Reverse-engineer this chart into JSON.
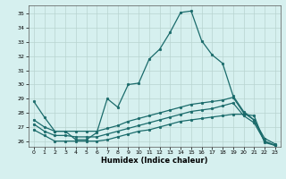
{
  "xlabel": "Humidex (Indice chaleur)",
  "xlim": [
    -0.5,
    23.5
  ],
  "ylim": [
    25.6,
    35.6
  ],
  "yticks": [
    26,
    27,
    28,
    29,
    30,
    31,
    32,
    33,
    34,
    35
  ],
  "xticks": [
    0,
    1,
    2,
    3,
    4,
    5,
    6,
    7,
    8,
    9,
    10,
    11,
    12,
    13,
    14,
    15,
    16,
    17,
    18,
    19,
    20,
    21,
    22,
    23
  ],
  "background_color": "#d6f0ef",
  "grid_color": "#b8d4d0",
  "line_color": "#1a6b6b",
  "line1": [
    28.8,
    27.7,
    26.7,
    26.7,
    26.1,
    26.1,
    26.6,
    29.0,
    28.4,
    30.0,
    30.1,
    31.8,
    32.5,
    33.7,
    35.1,
    35.2,
    33.1,
    32.1,
    31.5,
    29.2,
    28.1,
    27.5,
    26.2,
    25.8
  ],
  "line2": [
    26.8,
    26.4,
    26.0,
    26.0,
    26.0,
    26.0,
    26.0,
    26.1,
    26.3,
    26.5,
    26.7,
    26.8,
    27.0,
    27.2,
    27.4,
    27.5,
    27.6,
    27.7,
    27.8,
    27.9,
    27.9,
    27.8,
    25.9,
    25.7
  ],
  "line3": [
    27.5,
    27.0,
    26.7,
    26.7,
    26.7,
    26.7,
    26.7,
    26.9,
    27.1,
    27.4,
    27.6,
    27.8,
    28.0,
    28.2,
    28.4,
    28.6,
    28.7,
    28.8,
    28.9,
    29.1,
    28.0,
    27.5,
    26.0,
    25.7
  ],
  "line4": [
    27.2,
    26.7,
    26.4,
    26.4,
    26.3,
    26.3,
    26.3,
    26.5,
    26.7,
    26.9,
    27.1,
    27.3,
    27.5,
    27.7,
    27.9,
    28.1,
    28.2,
    28.3,
    28.5,
    28.7,
    27.8,
    27.3,
    26.0,
    25.7
  ]
}
